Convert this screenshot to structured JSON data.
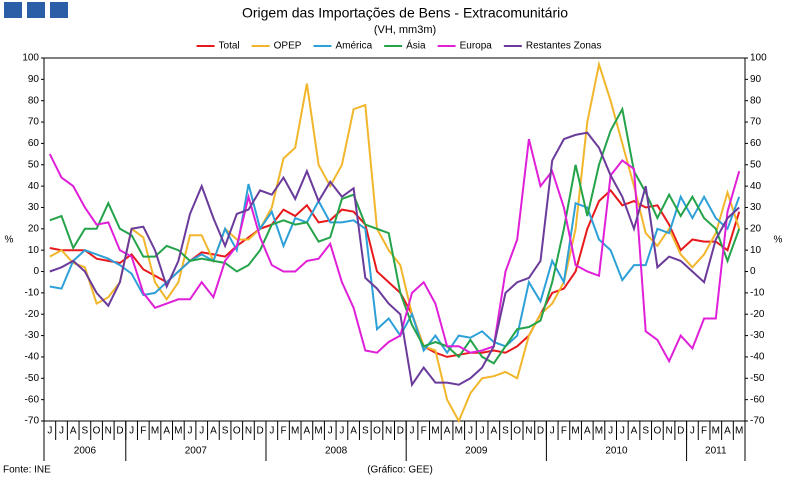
{
  "chart_data": {
    "type": "line",
    "title": "Origem das Importações de Bens - Extracomunitário",
    "subtitle": "(VH, mm3m)",
    "ylabel": "%",
    "source": "Fonte: INE",
    "credit": "(Gráfico: GEE)",
    "categories": [
      "J",
      "J",
      "A",
      "S",
      "O",
      "N",
      "D",
      "J",
      "F",
      "M",
      "A",
      "M",
      "J",
      "J",
      "A",
      "S",
      "O",
      "N",
      "D",
      "J",
      "F",
      "M",
      "A",
      "M",
      "J",
      "J",
      "A",
      "S",
      "O",
      "N",
      "D",
      "J",
      "F",
      "M",
      "A",
      "M",
      "J",
      "J",
      "A",
      "S",
      "O",
      "N",
      "D",
      "J",
      "F",
      "M",
      "A",
      "M",
      "J",
      "J",
      "A",
      "S",
      "O",
      "N",
      "D",
      "J",
      "F",
      "M",
      "A",
      "M"
    ],
    "years": [
      "2006",
      "2007",
      "2008",
      "2009",
      "2010",
      "2011"
    ],
    "ylim": [
      -70,
      100
    ],
    "yticks": [
      -70,
      -60,
      -50,
      -40,
      -30,
      -20,
      -10,
      0,
      10,
      20,
      30,
      40,
      50,
      60,
      70,
      80,
      90,
      100
    ],
    "grid": false,
    "legend": "top",
    "series": [
      {
        "name": "Total",
        "color": "#e8191c",
        "values": [
          11,
          10,
          10,
          10,
          6,
          5,
          4,
          8,
          1,
          -2,
          -5,
          0,
          5,
          9,
          8,
          7,
          12,
          16,
          20,
          22,
          29,
          26,
          31,
          23,
          24,
          29,
          28,
          22,
          0,
          -5,
          -10,
          -20,
          -35,
          -38,
          -40,
          -39,
          -38,
          -38,
          -37,
          -38,
          -35,
          -30,
          -20,
          -10,
          -8,
          0,
          20,
          33,
          38,
          31,
          33,
          30,
          31,
          22,
          10,
          15,
          14,
          14,
          10,
          28
        ]
      },
      {
        "name": "OPEP",
        "color": "#f2b62c",
        "values": [
          7,
          10,
          4,
          2,
          -15,
          -12,
          -5,
          20,
          16,
          -5,
          -13,
          -5,
          17,
          17,
          5,
          20,
          15,
          15,
          20,
          30,
          53,
          58,
          88,
          50,
          40,
          50,
          76,
          78,
          20,
          10,
          3,
          -20,
          -35,
          -37,
          -60,
          -70,
          -57,
          -50,
          -49,
          -47,
          -50,
          -30,
          -20,
          -15,
          -5,
          20,
          70,
          97,
          80,
          60,
          40,
          18,
          12,
          20,
          8,
          2,
          8,
          18,
          37,
          20
        ]
      },
      {
        "name": "América",
        "color": "#2ea0d8",
        "values": [
          -7,
          -8,
          5,
          10,
          8,
          6,
          3,
          -1,
          -11,
          -10,
          -5,
          0,
          5,
          8,
          5,
          20,
          10,
          41,
          20,
          28,
          12,
          25,
          23,
          33,
          23,
          23,
          24,
          20,
          -27,
          -22,
          -30,
          -20,
          -37,
          -30,
          -38,
          -30,
          -31,
          -28,
          -33,
          -35,
          -30,
          -5,
          -14,
          5,
          -5,
          32,
          30,
          15,
          10,
          -4,
          3,
          3,
          20,
          18,
          35,
          25,
          35,
          25,
          20,
          35
        ]
      },
      {
        "name": "Ásia",
        "color": "#24a34a",
        "values": [
          24,
          26,
          11,
          20,
          20,
          32,
          20,
          17,
          7,
          7,
          12,
          10,
          5,
          6,
          5,
          4,
          0,
          3,
          10,
          22,
          24,
          22,
          23,
          14,
          16,
          34,
          36,
          22,
          20,
          18,
          -10,
          -25,
          -35,
          -33,
          -35,
          -40,
          -32,
          -40,
          -43,
          -35,
          -27,
          -26,
          -23,
          -5,
          20,
          50,
          26,
          50,
          66,
          76,
          47,
          37,
          25,
          36,
          26,
          35,
          25,
          20,
          5,
          20
        ]
      },
      {
        "name": "Europa",
        "color": "#e020d8",
        "values": [
          55,
          44,
          40,
          30,
          22,
          23,
          10,
          7,
          -10,
          -17,
          -15,
          -13,
          -13,
          -5,
          -12,
          5,
          12,
          35,
          16,
          3,
          0,
          0,
          5,
          6,
          13,
          -5,
          -17,
          -37,
          -38,
          -33,
          -30,
          -10,
          -5,
          -15,
          -35,
          -35,
          -38,
          -37,
          -35,
          0,
          15,
          62,
          40,
          47,
          30,
          3,
          0,
          -2,
          45,
          52,
          48,
          -28,
          -32,
          -42,
          -30,
          -36,
          -22,
          -22,
          28,
          47
        ]
      },
      {
        "name": "Restantes Zonas",
        "color": "#6a3b9b",
        "values": [
          0,
          2,
          5,
          0,
          -10,
          -16,
          -5,
          20,
          21,
          10,
          -7,
          5,
          27,
          40,
          25,
          12,
          27,
          29,
          38,
          36,
          44,
          34,
          47,
          33,
          42,
          35,
          39,
          -3,
          -8,
          -15,
          -20,
          -53,
          -45,
          -52,
          -52,
          -53,
          -50,
          -45,
          -35,
          -10,
          -5,
          -3,
          5,
          52,
          62,
          64,
          65,
          58,
          45,
          35,
          20,
          40,
          2,
          7,
          5,
          0,
          -5,
          15,
          25,
          30
        ]
      }
    ]
  }
}
